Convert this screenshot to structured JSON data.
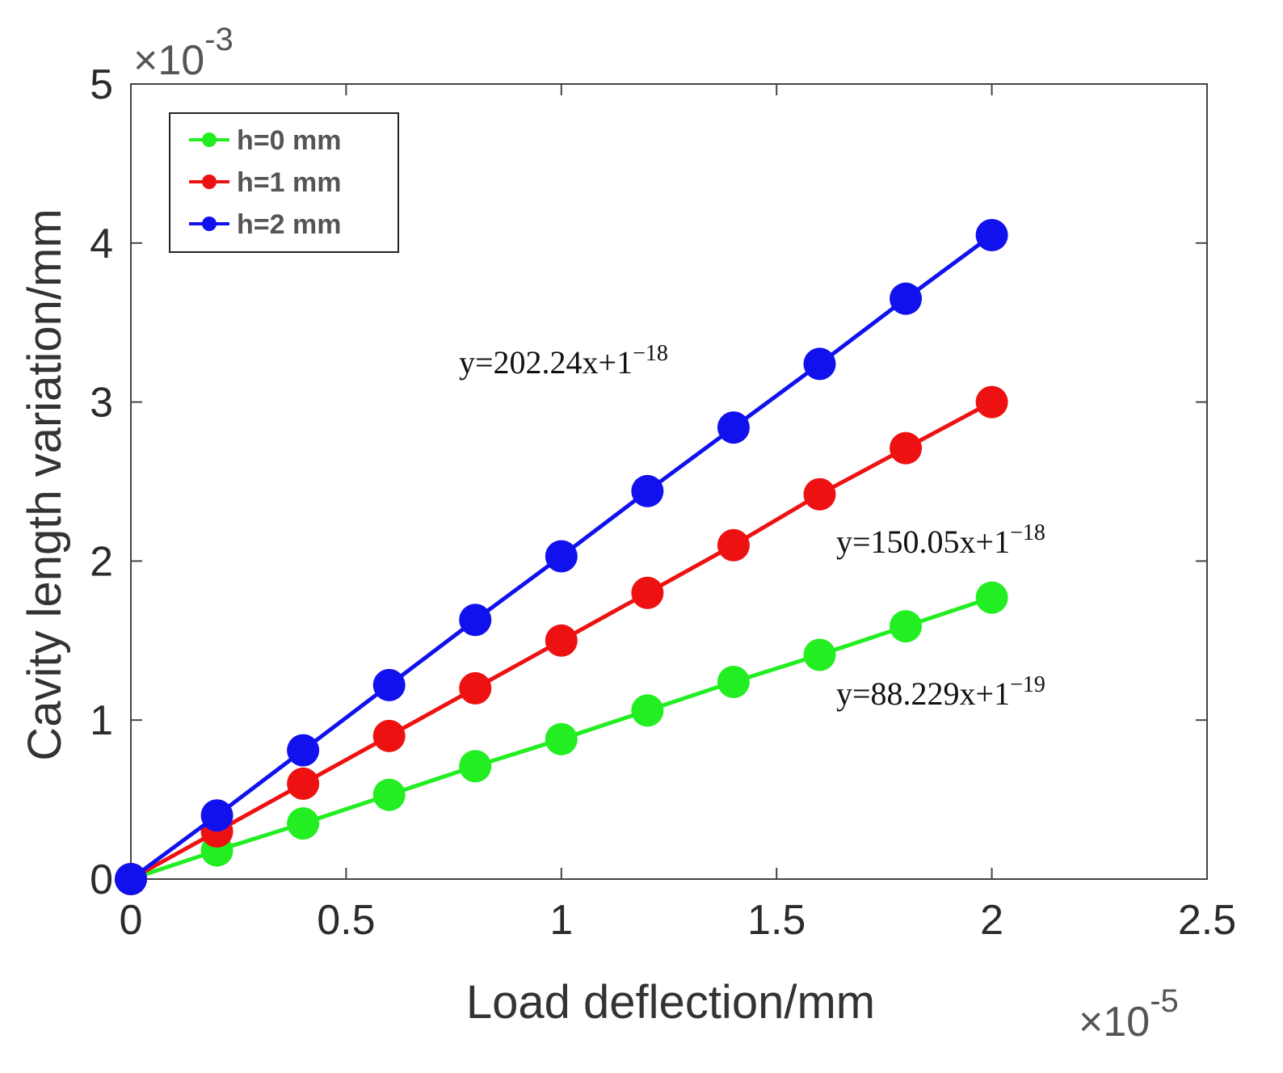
{
  "chart_data": {
    "type": "line",
    "title": "",
    "xlabel": "Load deflection/mm",
    "ylabel": "Cavity length variation/mm",
    "x_multiplier_label": {
      "base": "×10",
      "exp": "-5"
    },
    "y_multiplier_label": {
      "base": "×10",
      "exp": "-3"
    },
    "xlim": [
      0,
      2.5
    ],
    "ylim": [
      0,
      5
    ],
    "x_ticks": [
      "0",
      "0.5",
      "1",
      "1.5",
      "2",
      "2.5"
    ],
    "y_ticks": [
      "0",
      "1",
      "2",
      "3",
      "4",
      "5"
    ],
    "x_tick_values": [
      0,
      0.5,
      1,
      1.5,
      2,
      2.5
    ],
    "y_tick_values": [
      0,
      1,
      2,
      3,
      4,
      5
    ],
    "x": [
      0,
      0.2,
      0.4,
      0.6,
      0.8,
      1.0,
      1.2,
      1.4,
      1.6,
      1.8,
      2.0
    ],
    "legend_position": "top-left",
    "series": [
      {
        "name": "h=0 mm",
        "color": "#22ee22",
        "values": [
          0,
          0.18,
          0.35,
          0.53,
          0.71,
          0.88,
          1.06,
          1.24,
          1.41,
          1.59,
          1.77
        ],
        "equation": {
          "main": "y=88.229x+1",
          "exp": "−19"
        }
      },
      {
        "name": "h=1 mm",
        "color": "#ee1111",
        "values": [
          0,
          0.3,
          0.6,
          0.9,
          1.2,
          1.5,
          1.8,
          2.1,
          2.42,
          2.71,
          3.0
        ],
        "equation": {
          "main": "y=150.05x+1",
          "exp": "−18"
        }
      },
      {
        "name": "h=2 mm",
        "color": "#1111ee",
        "values": [
          0,
          0.4,
          0.81,
          1.22,
          1.63,
          2.03,
          2.44,
          2.84,
          3.24,
          3.65,
          4.05
        ],
        "equation": {
          "main": "y=202.24x+1",
          "exp": "−18"
        }
      }
    ]
  }
}
